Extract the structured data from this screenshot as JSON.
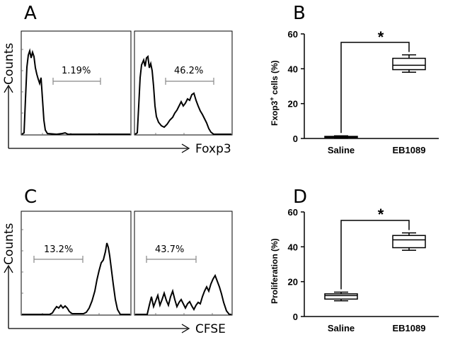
{
  "panels": {
    "A": {
      "letter": "A",
      "y_axis_label": "Counts",
      "x_axis_label": "Foxp3",
      "left_percent": "1.19%",
      "right_percent": "46.2%"
    },
    "B": {
      "letter": "B",
      "y_axis_label": "Fxop3",
      "y_axis_sup": "+",
      "y_axis_rest": " cells (%)",
      "significance": "*"
    },
    "C": {
      "letter": "C",
      "y_axis_label": "Counts",
      "x_axis_label": "CFSE",
      "left_percent": "13.2%",
      "right_percent": "43.7%"
    },
    "D": {
      "letter": "D",
      "y_axis_label": "Proliferation (%)",
      "significance": "*"
    }
  },
  "chart_data": [
    {
      "panel": "B",
      "type": "box",
      "categories": [
        "Saline",
        "EB1089"
      ],
      "ylabel": "Fxop3+ cells (%)",
      "ylim": [
        0,
        60
      ],
      "yticks": [
        "0",
        "20",
        "40",
        "60"
      ],
      "series": [
        {
          "name": "Saline",
          "min": 0.5,
          "q1": 0.8,
          "median": 1.0,
          "q3": 1.2,
          "max": 1.5
        },
        {
          "name": "EB1089",
          "min": 38,
          "q1": 39.5,
          "median": 42,
          "q3": 46,
          "max": 48
        }
      ],
      "significance": "*"
    },
    {
      "panel": "D",
      "type": "box",
      "categories": [
        "Saline",
        "EB1089"
      ],
      "ylabel": "Proliferation (%)",
      "ylim": [
        0,
        60
      ],
      "yticks": [
        "0",
        "20",
        "40",
        "60"
      ],
      "series": [
        {
          "name": "Saline",
          "min": 9,
          "q1": 10,
          "median": 12,
          "q3": 13,
          "max": 14
        },
        {
          "name": "EB1089",
          "min": 38,
          "q1": 39.5,
          "median": 44,
          "q3": 46.5,
          "max": 48
        }
      ],
      "significance": "*"
    }
  ]
}
